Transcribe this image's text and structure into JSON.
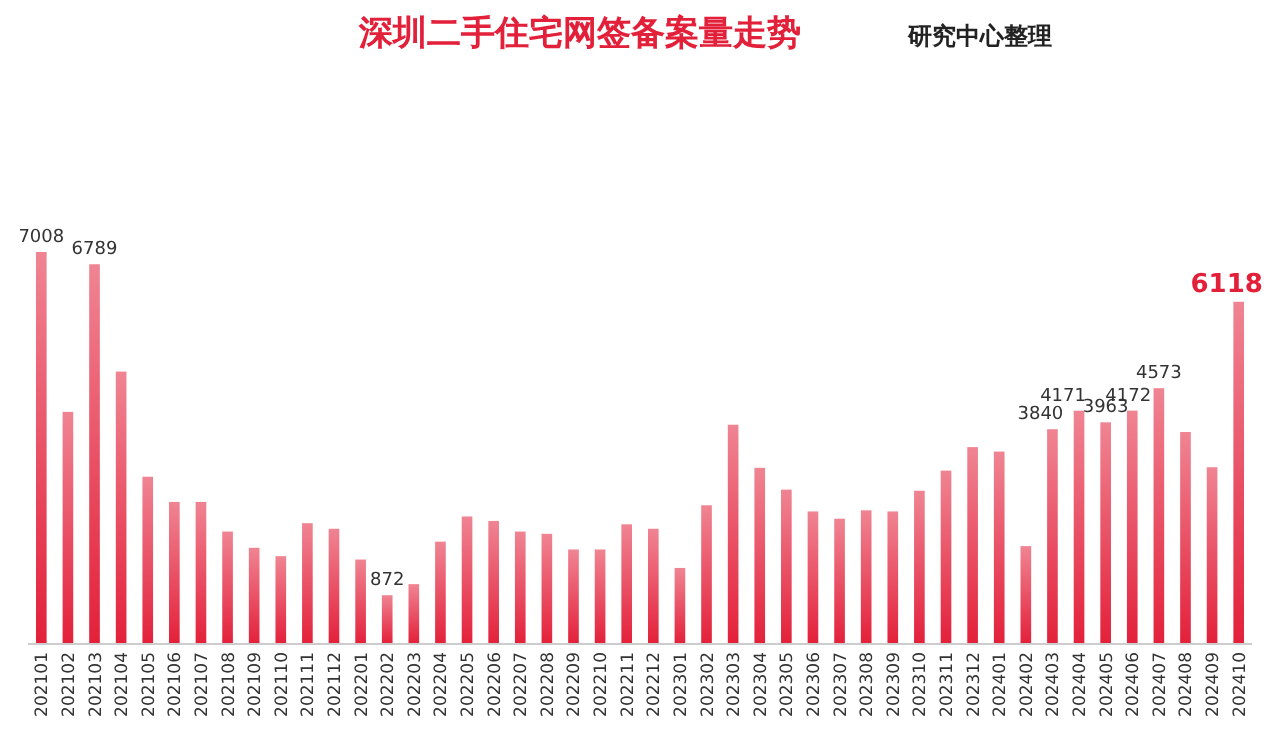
{
  "chart_data": {
    "type": "bar",
    "title": "深圳二手住宅网签备案量走势",
    "annotations": [
      "研究中心整理"
    ],
    "categories": [
      "202101",
      "202102",
      "202103",
      "202104",
      "202105",
      "202106",
      "202107",
      "202108",
      "202109",
      "202110",
      "202111",
      "202112",
      "202201",
      "202202",
      "202203",
      "202204",
      "202205",
      "202206",
      "202207",
      "202208",
      "202209",
      "202210",
      "202211",
      "202212",
      "202301",
      "202302",
      "202303",
      "202304",
      "202305",
      "202306",
      "202307",
      "202308",
      "202309",
      "202310",
      "202311",
      "202312",
      "202401",
      "202402",
      "202403",
      "202404",
      "202405",
      "202406",
      "202407",
      "202408",
      "202409",
      "202410"
    ],
    "values": [
      7008,
      4150,
      6789,
      4870,
      2990,
      2540,
      2540,
      2010,
      1720,
      1570,
      2160,
      2060,
      1510,
      872,
      1070,
      1830,
      2280,
      2200,
      2010,
      1970,
      1690,
      1690,
      2140,
      2060,
      1360,
      2480,
      3920,
      3150,
      2760,
      2370,
      2240,
      2390,
      2370,
      2740,
      3100,
      3520,
      3440,
      1750,
      3840,
      4171,
      3963,
      4172,
      4573,
      3790,
      3160,
      6118
    ],
    "value_labels": [
      "7008",
      null,
      "6789",
      null,
      null,
      null,
      null,
      null,
      null,
      null,
      null,
      null,
      null,
      "872",
      null,
      null,
      null,
      null,
      null,
      null,
      null,
      null,
      null,
      null,
      null,
      null,
      null,
      null,
      null,
      null,
      null,
      null,
      null,
      null,
      null,
      null,
      null,
      null,
      "3840",
      "4171",
      "3963",
      "4172",
      "4573",
      null,
      null,
      "6118"
    ],
    "color": "#e3203a",
    "grid": false
  }
}
